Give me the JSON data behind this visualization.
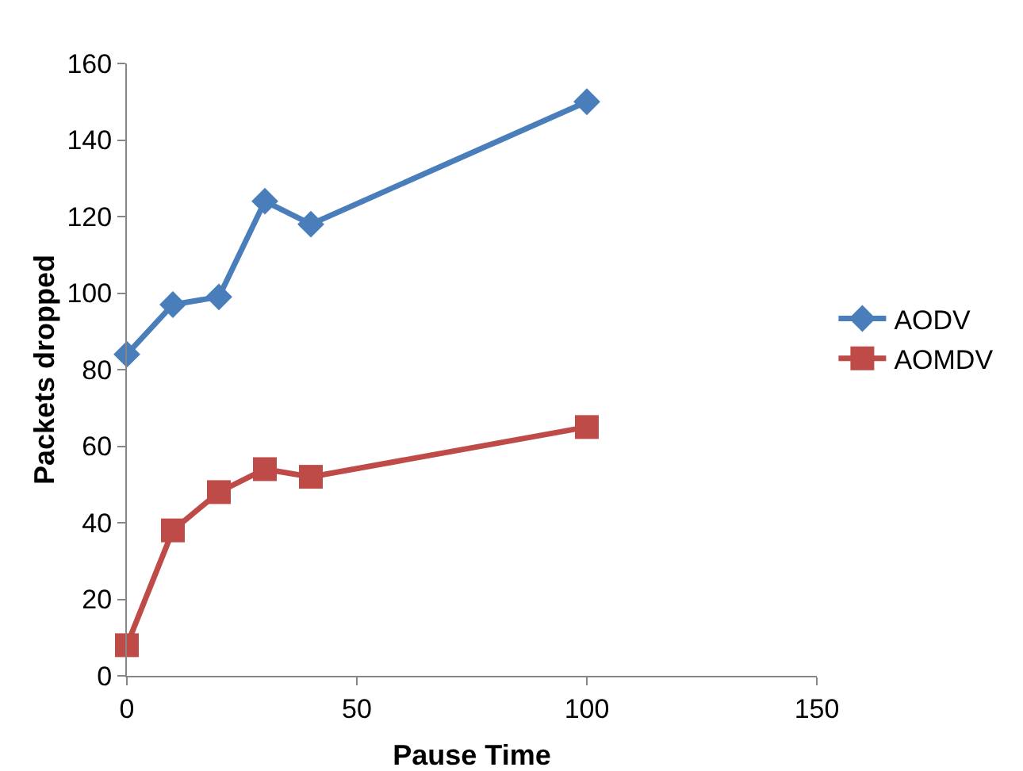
{
  "chart_data": {
    "type": "line",
    "xlabel": "Pause Time",
    "ylabel": "Packets dropped",
    "x": [
      0,
      10,
      20,
      30,
      40,
      100
    ],
    "series": [
      {
        "name": "AODV",
        "color": "#4a7ebb",
        "marker": "diamond",
        "values": [
          84,
          97,
          99,
          124,
          118,
          150
        ]
      },
      {
        "name": "AOMDV",
        "color": "#be4b48",
        "marker": "square",
        "values": [
          8,
          38,
          48,
          54,
          52,
          65
        ]
      }
    ],
    "xlim": [
      0,
      150
    ],
    "xticks": [
      0,
      50,
      100,
      150
    ],
    "ylim": [
      0,
      160
    ],
    "yticks": [
      0,
      20,
      40,
      60,
      80,
      100,
      120,
      140,
      160
    ],
    "grid": false,
    "legend": "right",
    "line_style": "solid"
  }
}
